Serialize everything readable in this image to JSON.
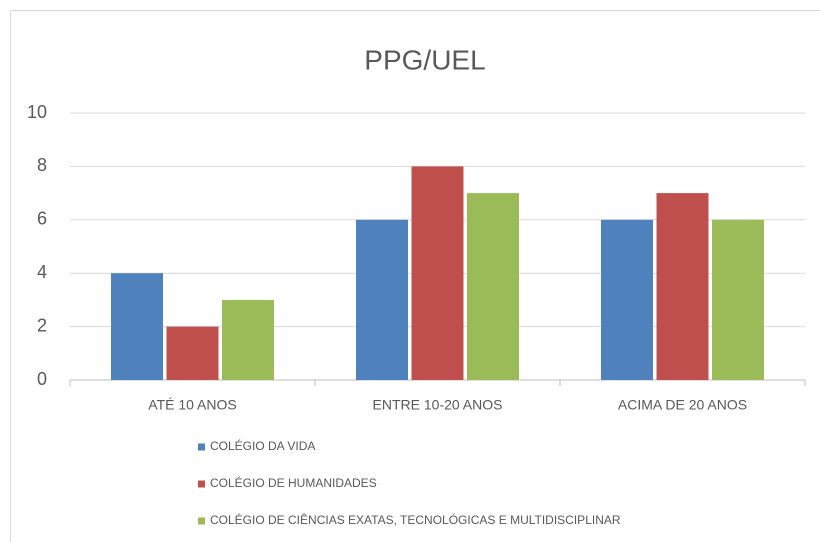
{
  "chart_data": {
    "type": "bar",
    "title": "PPG/UEL",
    "categories": [
      "ATÉ 10 ANOS",
      "ENTRE 10-20 ANOS",
      "ACIMA DE 20 ANOS"
    ],
    "series": [
      {
        "name": "COLÉGIO DA VIDA",
        "color": "#4f81bd",
        "values": [
          4,
          6,
          6
        ]
      },
      {
        "name": "COLÉGIO DE HUMANIDADES",
        "color": "#c0504d",
        "values": [
          2,
          8,
          7
        ]
      },
      {
        "name": "COLÉGIO DE CIÊNCIAS EXATAS, TECNOLÓGICAS E MULTIDISCIPLINAR",
        "color": "#9bbb59",
        "values": [
          3,
          7,
          6
        ]
      }
    ],
    "ylim": [
      0,
      10
    ],
    "yticks": [
      0,
      2,
      4,
      6,
      8,
      10
    ],
    "grid": true,
    "legend": "bottom"
  }
}
